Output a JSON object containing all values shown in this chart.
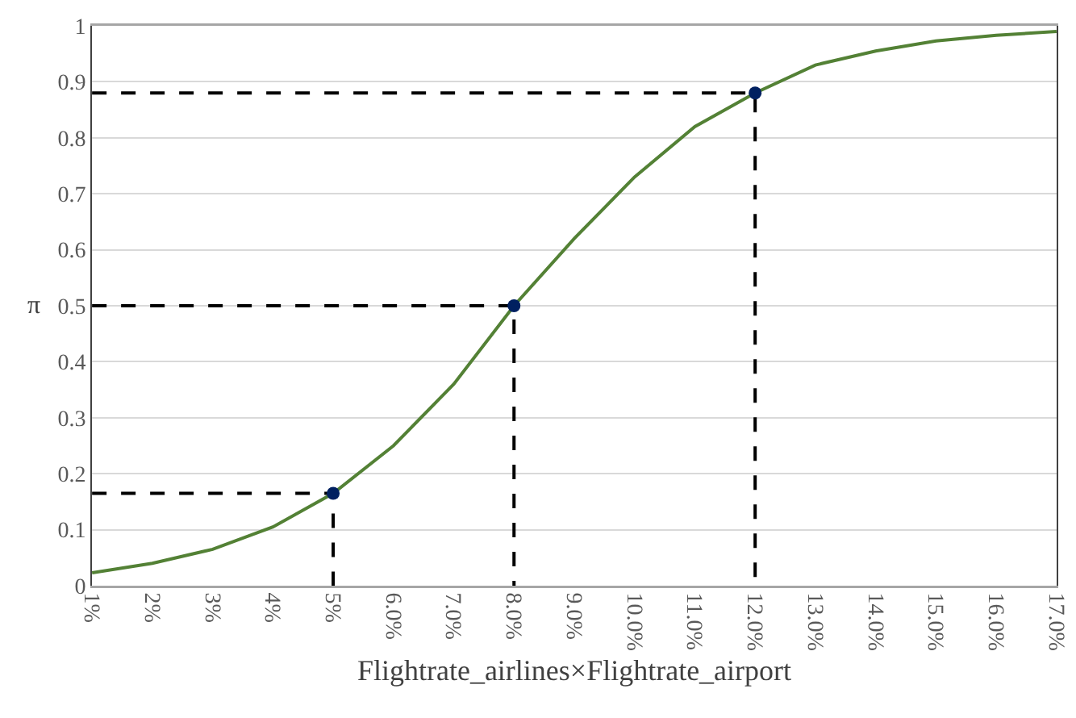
{
  "chart_data": {
    "type": "line",
    "xlabel": "Flightrate_airlines×Flightrate_airport",
    "ylabel": "π",
    "categories": [
      "1%",
      "2%",
      "3%",
      "4%",
      "5%",
      "6.0%",
      "7.0%",
      "8.0%",
      "9.0%",
      "10.0%",
      "11.0%",
      "12.0%",
      "13.0%",
      "14.0%",
      "15.0%",
      "16.0%",
      "17.0%"
    ],
    "series": [
      {
        "color": "#538135",
        "marker": "none",
        "line_style": "solid",
        "values": [
          0.023,
          0.04,
          0.065,
          0.105,
          0.165,
          0.25,
          0.36,
          0.5,
          0.62,
          0.73,
          0.82,
          0.88,
          0.93,
          0.955,
          0.973,
          0.983,
          0.99
        ]
      },
      {
        "type": "line",
        "color": "#000000",
        "marker": "none",
        "line_style": "dashed",
        "x": [
          "1%",
          "5%",
          "5%"
        ],
        "values": [
          0.165,
          0.165,
          0
        ]
      },
      {
        "type": "line",
        "color": "#000000",
        "marker": "none",
        "line_style": "dashed",
        "x": [
          "1%",
          "8.0%",
          "8.0%"
        ],
        "values": [
          0.5,
          0.5,
          0
        ]
      },
      {
        "type": "line",
        "color": "#000000",
        "marker": "none",
        "line_style": "dashed",
        "x": [
          "1%",
          "12.0%",
          "12.0%"
        ],
        "values": [
          0.88,
          0.88,
          0
        ]
      },
      {
        "type": "scatter",
        "color": "#002060",
        "marker": "circle",
        "x": [
          "5%",
          "8.0%",
          "12.0%"
        ],
        "values": [
          0.165,
          0.5,
          0.88
        ]
      }
    ],
    "ylim": [
      0,
      1
    ],
    "yticks": [
      0,
      0.1,
      0.2,
      0.3,
      0.4,
      0.5,
      0.6,
      0.7,
      0.8,
      0.9,
      1
    ],
    "grid": "y"
  }
}
